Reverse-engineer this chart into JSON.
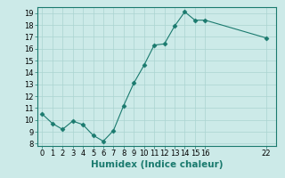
{
  "x": [
    0,
    1,
    2,
    3,
    4,
    5,
    6,
    7,
    8,
    9,
    10,
    11,
    12,
    13,
    14,
    15,
    16,
    22
  ],
  "y": [
    10.5,
    9.7,
    9.2,
    9.9,
    9.6,
    8.7,
    8.2,
    9.1,
    11.2,
    13.1,
    14.6,
    16.3,
    16.4,
    17.9,
    19.1,
    18.4,
    18.4,
    16.9
  ],
  "xlabel": "Humidex (Indice chaleur)",
  "xticks": [
    0,
    1,
    2,
    3,
    4,
    5,
    6,
    7,
    8,
    9,
    10,
    11,
    12,
    13,
    14,
    15,
    16,
    22
  ],
  "yticks": [
    8,
    9,
    10,
    11,
    12,
    13,
    14,
    15,
    16,
    17,
    18,
    19
  ],
  "ylim": [
    7.8,
    19.5
  ],
  "xlim": [
    -0.5,
    23.0
  ],
  "line_color": "#1a7a6e",
  "marker": "D",
  "marker_size": 2.5,
  "bg_color": "#cceae8",
  "grid_color": "#aad4d0",
  "xlabel_fontsize": 7.5,
  "tick_fontsize": 6.0
}
